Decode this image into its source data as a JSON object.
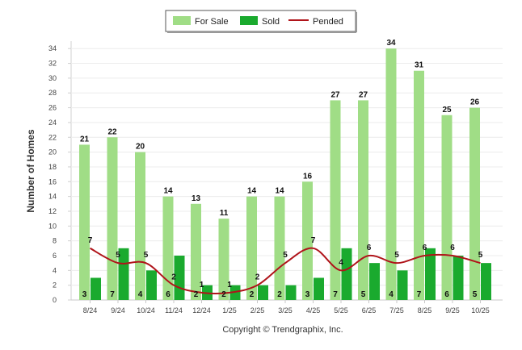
{
  "chart_data": {
    "type": "bar",
    "title": "",
    "xlabel": "",
    "ylabel": "Number of Homes",
    "ylim": [
      0,
      35
    ],
    "yticks": [
      0,
      2,
      4,
      6,
      8,
      10,
      12,
      14,
      16,
      18,
      20,
      22,
      24,
      26,
      28,
      30,
      32,
      34
    ],
    "categories": [
      "8/24",
      "9/24",
      "10/24",
      "11/24",
      "12/24",
      "1/25",
      "2/25",
      "3/25",
      "4/25",
      "5/25",
      "6/25",
      "7/25",
      "8/25",
      "9/25",
      "10/25"
    ],
    "series": [
      {
        "name": "For Sale",
        "kind": "bar",
        "color": "#a0dd86",
        "values": [
          21,
          22,
          20,
          14,
          13,
          11,
          14,
          14,
          16,
          27,
          27,
          34,
          31,
          25,
          26
        ]
      },
      {
        "name": "Sold",
        "kind": "bar",
        "color": "#1aaa2e",
        "values": [
          3,
          7,
          4,
          6,
          2,
          2,
          2,
          2,
          3,
          7,
          5,
          4,
          7,
          6,
          5
        ]
      },
      {
        "name": "Pended",
        "kind": "line",
        "color": "#b0141a",
        "values": [
          7,
          5,
          5,
          2,
          1,
          1,
          2,
          5,
          7,
          4,
          6,
          5,
          6,
          6,
          5
        ]
      }
    ],
    "legend_position": "top-center",
    "grid": true,
    "credit": "Copyright © Trendgraphix, Inc."
  }
}
